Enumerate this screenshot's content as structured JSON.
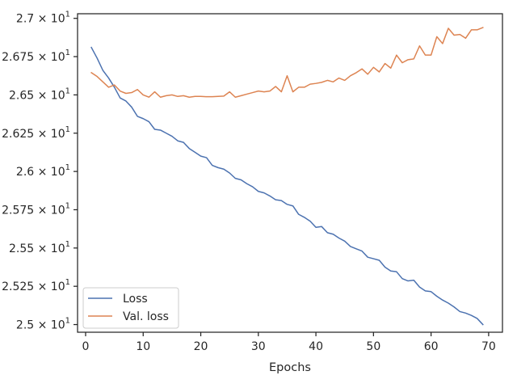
{
  "chart_data": {
    "type": "line",
    "title": "",
    "xlabel": "Epochs",
    "ylabel": "",
    "xlim": [
      -1.4,
      72.4
    ],
    "ylim": [
      24.95,
      27.03
    ],
    "x_ticks": [
      0,
      10,
      20,
      30,
      40,
      50,
      60,
      70
    ],
    "x_tick_labels": [
      "0",
      "10",
      "20",
      "30",
      "40",
      "50",
      "60",
      "70"
    ],
    "y_ticks": [
      25.0,
      25.25,
      25.5,
      25.75,
      26.0,
      26.25,
      26.5,
      26.75,
      27.0
    ],
    "y_tick_labels": [
      {
        "mantissa": "2.5",
        "exp": "1"
      },
      {
        "mantissa": "2.525",
        "exp": "1"
      },
      {
        "mantissa": "2.55",
        "exp": "1"
      },
      {
        "mantissa": "2.575",
        "exp": "1"
      },
      {
        "mantissa": "2.6",
        "exp": "1"
      },
      {
        "mantissa": "2.625",
        "exp": "1"
      },
      {
        "mantissa": "2.65",
        "exp": "1"
      },
      {
        "mantissa": "2.675",
        "exp": "1"
      },
      {
        "mantissa": "2.7",
        "exp": "1"
      }
    ],
    "grid": false,
    "legend_position": "lower-left",
    "x": [
      1,
      2,
      3,
      4,
      5,
      6,
      7,
      8,
      9,
      10,
      11,
      12,
      13,
      14,
      15,
      16,
      17,
      18,
      19,
      20,
      21,
      22,
      23,
      24,
      25,
      26,
      27,
      28,
      29,
      30,
      31,
      32,
      33,
      34,
      35,
      36,
      37,
      38,
      39,
      40,
      41,
      42,
      43,
      44,
      45,
      46,
      47,
      48,
      49,
      50,
      51,
      52,
      53,
      54,
      55,
      56,
      57,
      58,
      59,
      60,
      61,
      62,
      63,
      64,
      65,
      66,
      67,
      68,
      69
    ],
    "series": [
      {
        "name": "Loss",
        "color": "#4c72b0",
        "values": [
          26.81,
          26.74,
          26.66,
          26.61,
          26.55,
          26.48,
          26.46,
          26.42,
          26.36,
          26.345,
          26.325,
          26.275,
          26.27,
          26.25,
          26.23,
          26.2,
          26.19,
          26.15,
          26.125,
          26.1,
          26.09,
          26.04,
          26.025,
          26.015,
          25.99,
          25.955,
          25.945,
          25.92,
          25.9,
          25.87,
          25.86,
          25.84,
          25.815,
          25.81,
          25.785,
          25.775,
          25.72,
          25.7,
          25.675,
          25.635,
          25.64,
          25.6,
          25.59,
          25.565,
          25.545,
          25.51,
          25.495,
          25.48,
          25.44,
          25.43,
          25.42,
          25.375,
          25.35,
          25.345,
          25.3,
          25.285,
          25.29,
          25.245,
          25.22,
          25.215,
          25.185,
          25.16,
          25.14,
          25.115,
          25.085,
          25.075,
          25.06,
          25.04,
          25.0
        ]
      },
      {
        "name": "Val. loss",
        "color": "#dd8452",
        "values": [
          26.645,
          26.62,
          26.585,
          26.55,
          26.565,
          26.525,
          26.51,
          26.515,
          26.535,
          26.5,
          26.485,
          26.52,
          26.485,
          26.495,
          26.5,
          26.49,
          26.495,
          26.485,
          26.49,
          26.49,
          26.488,
          26.488,
          26.49,
          26.492,
          26.52,
          26.485,
          26.495,
          26.505,
          26.515,
          26.525,
          26.52,
          26.525,
          26.555,
          26.52,
          26.625,
          26.52,
          26.55,
          26.55,
          26.57,
          26.575,
          26.582,
          26.595,
          26.585,
          26.61,
          26.595,
          26.625,
          26.645,
          26.67,
          26.635,
          26.68,
          26.65,
          26.705,
          26.675,
          26.76,
          26.71,
          26.73,
          26.735,
          26.82,
          26.76,
          26.76,
          26.88,
          26.835,
          26.935,
          26.89,
          26.895,
          26.87,
          26.925,
          26.925,
          26.94
        ]
      }
    ]
  }
}
